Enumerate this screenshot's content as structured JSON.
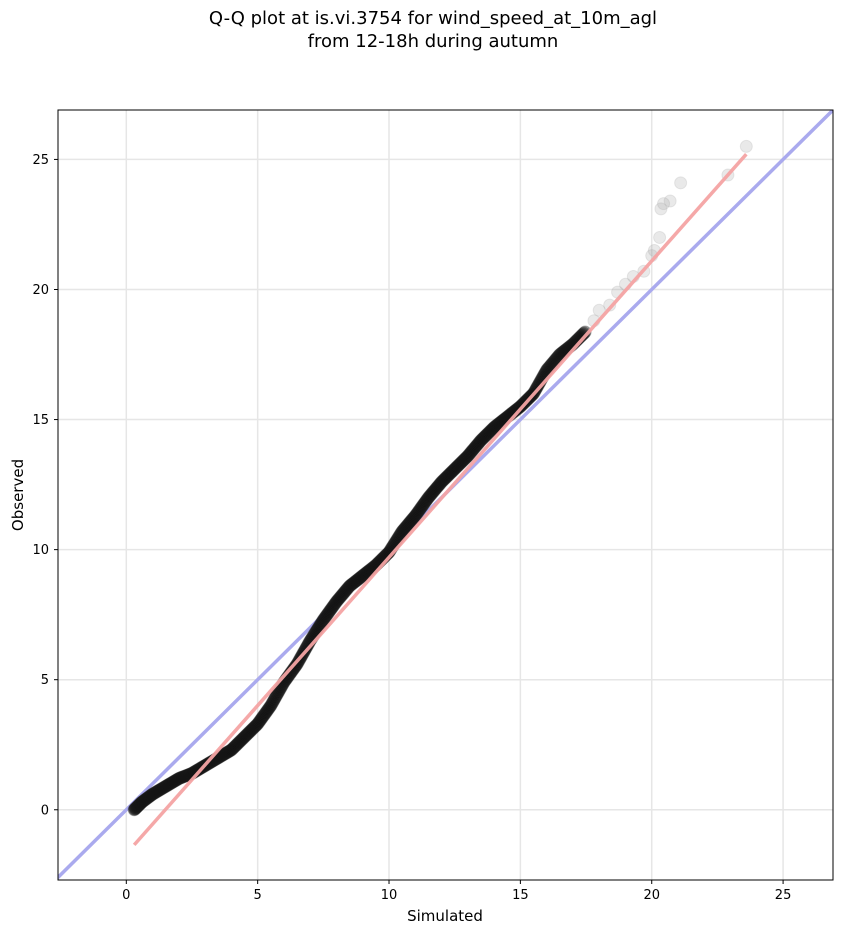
{
  "chart_data": {
    "type": "scatter",
    "title_line1": "Q-Q plot at is.vi.3754 for wind_speed_at_10m_agl",
    "title_line2": "from 12-18h during autumn",
    "xlabel": "Simulated",
    "ylabel": "Observed",
    "xlim": [
      -2.6,
      26.9
    ],
    "ylim": [
      -2.7,
      26.9
    ],
    "x_ticks": [
      0,
      5,
      10,
      15,
      20,
      25
    ],
    "y_ticks": [
      0,
      5,
      10,
      15,
      20,
      25
    ],
    "grid": true,
    "reference_line": {
      "label": "1:1 line",
      "color": "#aaaaee",
      "slope": 1,
      "intercept": 0
    },
    "fit_line": {
      "color": "#f4a3a3",
      "x": [
        0.3,
        23.6
      ],
      "y": [
        -1.35,
        25.2
      ]
    },
    "quantile_curve": {
      "x": [
        0.3,
        0.6,
        1.0,
        1.5,
        2.0,
        2.5,
        3.0,
        3.5,
        4.0,
        4.5,
        5.0,
        5.5,
        6.0,
        6.5,
        7.0,
        7.5,
        8.0,
        8.5,
        9.0,
        9.5,
        10.0,
        10.5,
        11.0,
        11.5,
        12.0,
        12.5,
        13.0,
        13.5,
        14.0,
        14.5,
        15.0,
        15.5,
        16.0,
        16.5,
        17.0,
        17.5
      ],
      "y": [
        0.0,
        0.3,
        0.6,
        0.9,
        1.2,
        1.4,
        1.7,
        2.0,
        2.3,
        2.8,
        3.3,
        4.0,
        4.9,
        5.6,
        6.5,
        7.3,
        8.0,
        8.6,
        9.0,
        9.4,
        9.9,
        10.7,
        11.3,
        12.0,
        12.6,
        13.1,
        13.6,
        14.2,
        14.7,
        15.1,
        15.5,
        16.0,
        16.9,
        17.5,
        17.9,
        18.4
      ]
    },
    "tail_points": {
      "x": [
        17.8,
        18.0,
        18.4,
        18.7,
        19.0,
        19.3,
        19.7,
        20.0,
        20.1,
        20.3,
        20.35,
        20.45,
        20.7,
        21.1,
        22.9,
        23.6
      ],
      "y": [
        18.8,
        19.2,
        19.4,
        19.9,
        20.2,
        20.5,
        20.7,
        21.3,
        21.5,
        22.0,
        23.1,
        23.3,
        23.4,
        24.1,
        24.4,
        25.5
      ]
    }
  }
}
